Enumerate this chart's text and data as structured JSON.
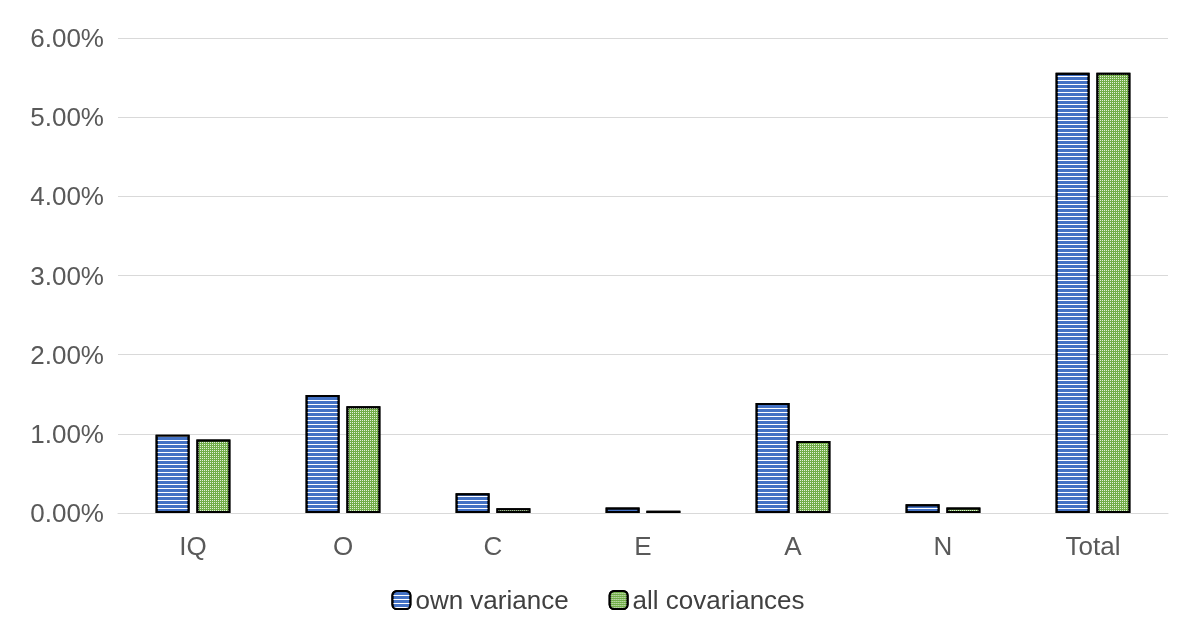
{
  "chart_data": {
    "type": "bar",
    "categories": [
      "IQ",
      "O",
      "C",
      "E",
      "A",
      "N",
      "Total"
    ],
    "series": [
      {
        "name": "own variance",
        "color": "#4472c4",
        "values": [
          0.99,
          1.49,
          0.25,
          0.07,
          1.39,
          0.11,
          5.56
        ]
      },
      {
        "name": "all covariances",
        "color": "#70ad47",
        "values": [
          0.93,
          1.35,
          0.06,
          0.03,
          0.91,
          0.07,
          5.56
        ]
      }
    ],
    "ylim": [
      0,
      6
    ],
    "yticks": [
      {
        "value": 0,
        "label": "0.00%"
      },
      {
        "value": 1,
        "label": "1.00%"
      },
      {
        "value": 2,
        "label": "2.00%"
      },
      {
        "value": 3,
        "label": "3.00%"
      },
      {
        "value": 4,
        "label": "4.00%"
      },
      {
        "value": 5,
        "label": "5.00%"
      },
      {
        "value": 6,
        "label": "6.00%"
      }
    ],
    "grid": "y",
    "legend": "bottom"
  }
}
